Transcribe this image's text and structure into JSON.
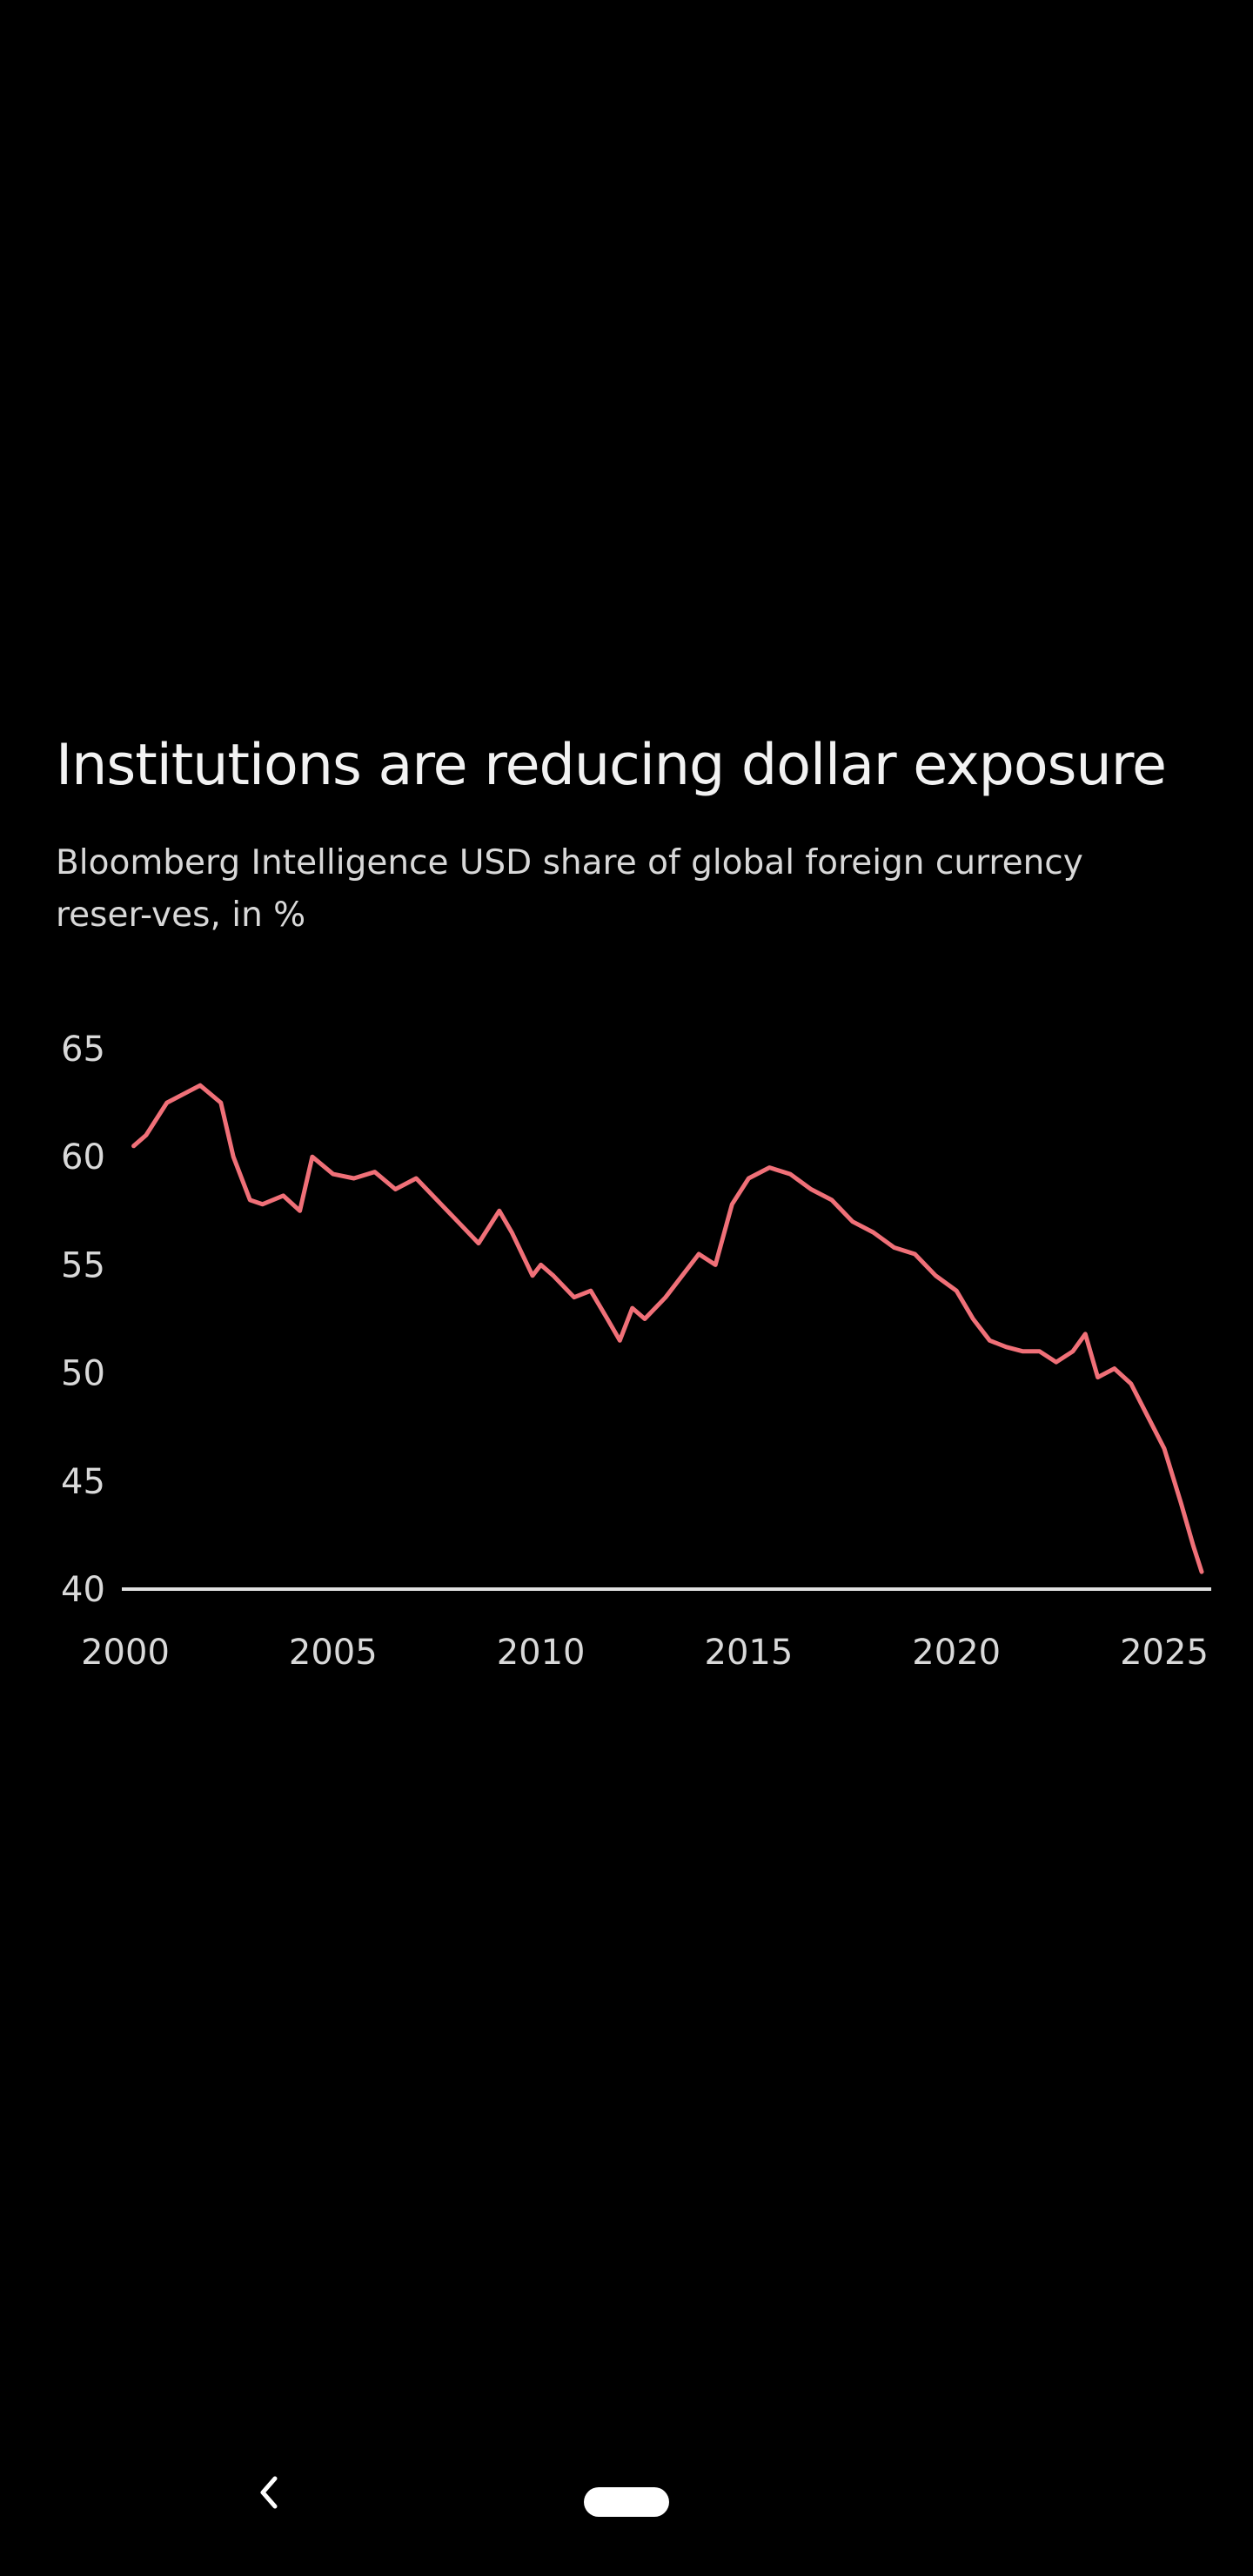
{
  "chart_data": {
    "type": "line",
    "title": "Institutions are reducing dollar exposure",
    "subtitle": "Bloomberg Intelligence USD share of global foreign currency reser-ves, in %",
    "xlabel": "",
    "ylabel": "",
    "xlim": [
      2000,
      2026
    ],
    "ylim": [
      40,
      65
    ],
    "x_ticks": [
      "2000",
      "2005",
      "2010",
      "2015",
      "2020",
      "2025"
    ],
    "y_ticks": [
      "40",
      "45",
      "50",
      "55",
      "60",
      "65"
    ],
    "grid": false,
    "series": [
      {
        "name": "USD share of global FX reserves",
        "color": "#f07078",
        "x": [
          2000.2,
          2000.5,
          2001.0,
          2001.5,
          2001.8,
          2002.3,
          2002.6,
          2003.0,
          2003.3,
          2003.8,
          2004.2,
          2004.5,
          2005.0,
          2005.5,
          2006.0,
          2006.5,
          2007.0,
          2007.5,
          2008.0,
          2008.5,
          2009.0,
          2009.3,
          2009.8,
          2010.0,
          2010.3,
          2010.8,
          2011.2,
          2011.6,
          2011.9,
          2012.2,
          2012.5,
          2013.0,
          2013.4,
          2013.8,
          2014.2,
          2014.6,
          2015.0,
          2015.5,
          2016.0,
          2016.5,
          2017.0,
          2017.5,
          2018.0,
          2018.5,
          2019.0,
          2019.5,
          2020.0,
          2020.4,
          2020.8,
          2021.2,
          2021.6,
          2022.0,
          2022.4,
          2022.8,
          2023.1,
          2023.4,
          2023.8,
          2024.2,
          2024.6,
          2025.0,
          2025.4,
          2025.7,
          2025.9
        ],
        "values": [
          60.5,
          61.0,
          62.5,
          63.0,
          63.3,
          62.5,
          60.0,
          58.0,
          57.8,
          58.2,
          57.5,
          60.0,
          59.2,
          59.0,
          59.3,
          58.5,
          59.0,
          58.0,
          57.0,
          56.0,
          57.5,
          56.5,
          54.5,
          55.0,
          54.5,
          53.5,
          53.8,
          52.5,
          51.5,
          53.0,
          52.5,
          53.5,
          54.5,
          55.5,
          55.0,
          57.8,
          59.0,
          59.5,
          59.2,
          58.5,
          58.0,
          57.0,
          56.5,
          55.8,
          55.5,
          54.5,
          53.8,
          52.5,
          51.5,
          51.2,
          51.0,
          51.0,
          50.5,
          51.0,
          51.8,
          49.8,
          50.2,
          49.5,
          48.0,
          46.5,
          44.0,
          42.0,
          40.8
        ]
      }
    ]
  },
  "nav": {
    "back_glyph": "‹"
  }
}
